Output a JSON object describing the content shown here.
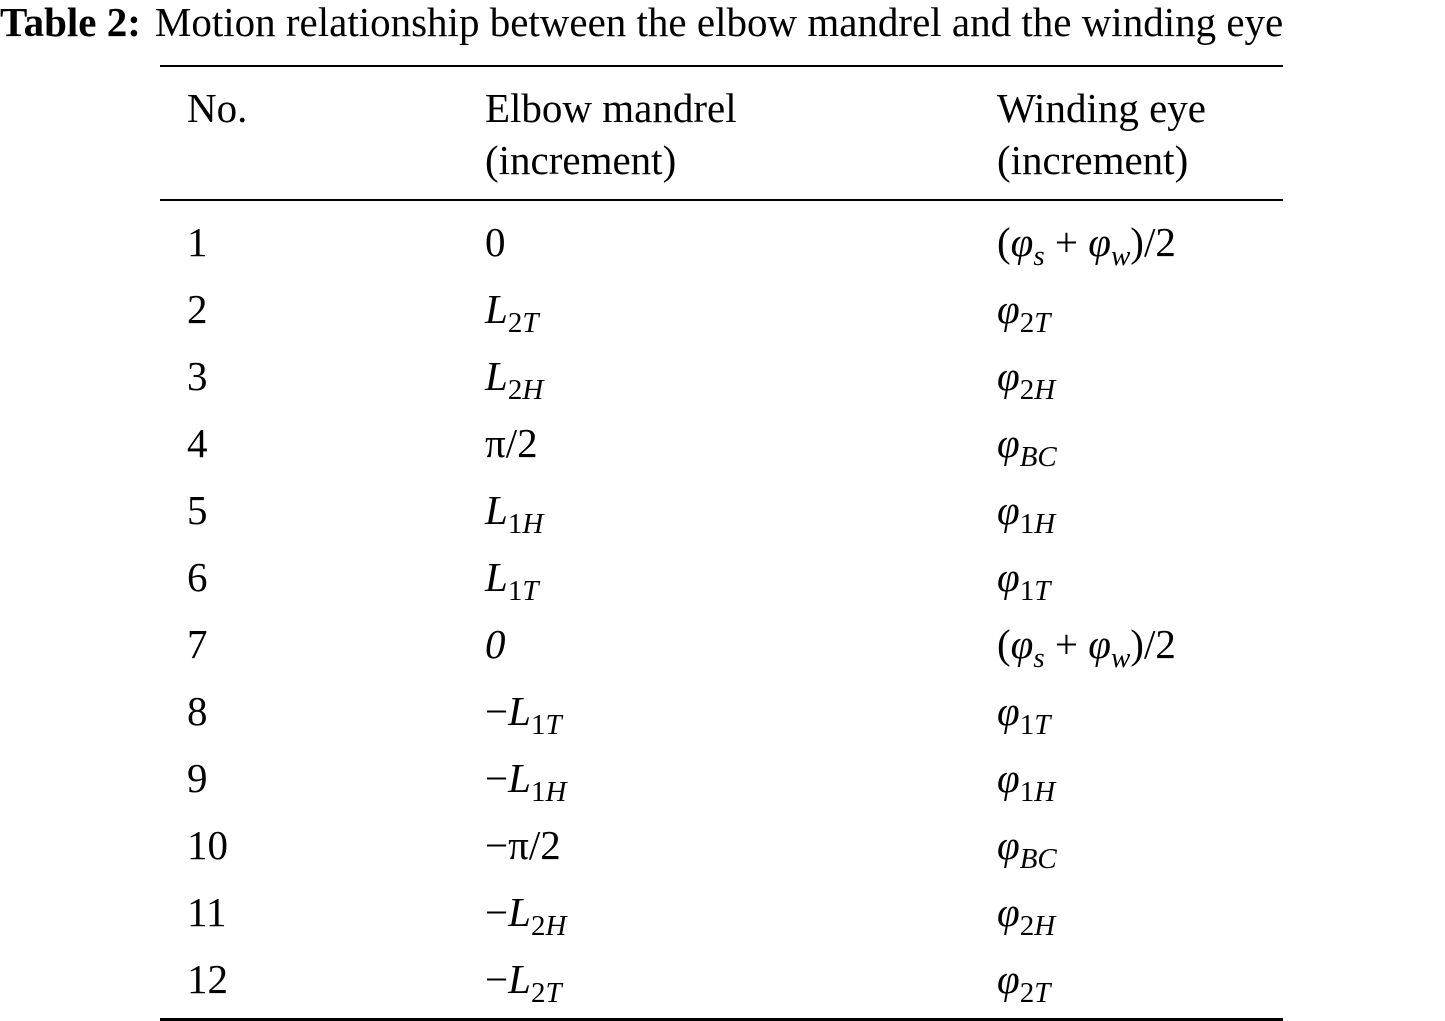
{
  "caption": {
    "label": "Table 2:",
    "text": "Motion relationship between the elbow mandrel and the winding eye"
  },
  "table": {
    "headers": [
      [
        "No."
      ],
      [
        "Elbow mandrel",
        "(increment)"
      ],
      [
        "Winding eye",
        "(increment)"
      ]
    ],
    "rows": [
      {
        "no": "1",
        "mandrel": [
          {
            "t": "0",
            "s": "n"
          }
        ],
        "eye": [
          {
            "t": "(",
            "s": "n"
          },
          {
            "t": "φ",
            "s": "i"
          },
          {
            "t": "s",
            "s": "subi"
          },
          {
            "t": " + ",
            "s": "n"
          },
          {
            "t": "φ",
            "s": "i"
          },
          {
            "t": "w",
            "s": "subi"
          },
          {
            "t": ")/2",
            "s": "n"
          }
        ]
      },
      {
        "no": "2",
        "mandrel": [
          {
            "t": "L",
            "s": "i"
          },
          {
            "t": "2",
            "s": "sub"
          },
          {
            "t": "T",
            "s": "subi"
          }
        ],
        "eye": [
          {
            "t": "φ",
            "s": "i"
          },
          {
            "t": "2",
            "s": "sub"
          },
          {
            "t": "T",
            "s": "subi"
          }
        ]
      },
      {
        "no": "3",
        "mandrel": [
          {
            "t": "L",
            "s": "i"
          },
          {
            "t": "2",
            "s": "sub"
          },
          {
            "t": "H",
            "s": "subi"
          }
        ],
        "eye": [
          {
            "t": "φ",
            "s": "i"
          },
          {
            "t": "2",
            "s": "sub"
          },
          {
            "t": "H",
            "s": "subi"
          }
        ]
      },
      {
        "no": "4",
        "mandrel": [
          {
            "t": "π/2",
            "s": "n"
          }
        ],
        "eye": [
          {
            "t": "φ",
            "s": "i"
          },
          {
            "t": "BC",
            "s": "subi"
          }
        ]
      },
      {
        "no": "5",
        "mandrel": [
          {
            "t": "L",
            "s": "i"
          },
          {
            "t": "1",
            "s": "sub"
          },
          {
            "t": "H",
            "s": "subi"
          }
        ],
        "eye": [
          {
            "t": "φ",
            "s": "i"
          },
          {
            "t": "1",
            "s": "sub"
          },
          {
            "t": "H",
            "s": "subi"
          }
        ]
      },
      {
        "no": "6",
        "mandrel": [
          {
            "t": "L",
            "s": "i"
          },
          {
            "t": "1",
            "s": "sub"
          },
          {
            "t": "T",
            "s": "subi"
          }
        ],
        "eye": [
          {
            "t": "φ",
            "s": "i"
          },
          {
            "t": "1",
            "s": "sub"
          },
          {
            "t": "T",
            "s": "subi"
          }
        ]
      },
      {
        "no": "7",
        "mandrel": [
          {
            "t": "0",
            "s": "i"
          }
        ],
        "eye": [
          {
            "t": "(",
            "s": "n"
          },
          {
            "t": "φ",
            "s": "i"
          },
          {
            "t": "s",
            "s": "subi"
          },
          {
            "t": " + ",
            "s": "n"
          },
          {
            "t": "φ",
            "s": "i"
          },
          {
            "t": "w",
            "s": "subi"
          },
          {
            "t": ")/2",
            "s": "n"
          }
        ]
      },
      {
        "no": "8",
        "mandrel": [
          {
            "t": "−",
            "s": "n"
          },
          {
            "t": "L",
            "s": "i"
          },
          {
            "t": "1",
            "s": "sub"
          },
          {
            "t": "T",
            "s": "subi"
          }
        ],
        "eye": [
          {
            "t": "φ",
            "s": "i"
          },
          {
            "t": "1",
            "s": "sub"
          },
          {
            "t": "T",
            "s": "subi"
          }
        ]
      },
      {
        "no": "9",
        "mandrel": [
          {
            "t": "−",
            "s": "n"
          },
          {
            "t": "L",
            "s": "i"
          },
          {
            "t": "1",
            "s": "sub"
          },
          {
            "t": "H",
            "s": "subi"
          }
        ],
        "eye": [
          {
            "t": "φ",
            "s": "i"
          },
          {
            "t": "1",
            "s": "sub"
          },
          {
            "t": "H",
            "s": "subi"
          }
        ]
      },
      {
        "no": "10",
        "mandrel": [
          {
            "t": "−π/2",
            "s": "n"
          }
        ],
        "eye": [
          {
            "t": "φ",
            "s": "i"
          },
          {
            "t": "BC",
            "s": "subi"
          }
        ]
      },
      {
        "no": "11",
        "mandrel": [
          {
            "t": "−",
            "s": "n"
          },
          {
            "t": "L",
            "s": "i"
          },
          {
            "t": "2",
            "s": "sub"
          },
          {
            "t": "H",
            "s": "subi"
          }
        ],
        "eye": [
          {
            "t": "φ",
            "s": "i"
          },
          {
            "t": "2",
            "s": "sub"
          },
          {
            "t": "H",
            "s": "subi"
          }
        ]
      },
      {
        "no": "12",
        "mandrel": [
          {
            "t": "−",
            "s": "n"
          },
          {
            "t": "L",
            "s": "i"
          },
          {
            "t": "2",
            "s": "sub"
          },
          {
            "t": "T",
            "s": "subi"
          }
        ],
        "eye": [
          {
            "t": "φ",
            "s": "i"
          },
          {
            "t": "2",
            "s": "sub"
          },
          {
            "t": "T",
            "s": "subi"
          }
        ]
      }
    ]
  }
}
